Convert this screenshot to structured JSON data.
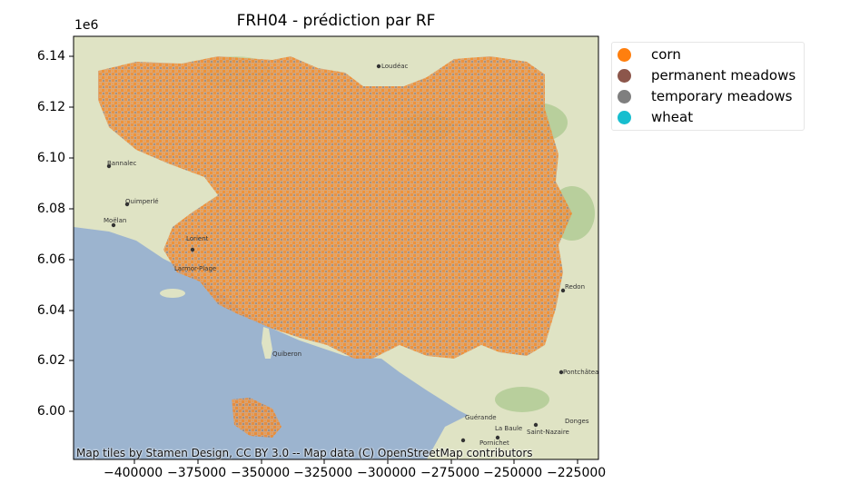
{
  "title": "FRH04 - prédiction par RF",
  "axis": {
    "offset_label": "1e6",
    "y_ticks": [
      "6.14",
      "6.12",
      "6.10",
      "6.08",
      "6.06",
      "6.04",
      "6.02",
      "6.00"
    ],
    "x_ticks": [
      "−400000",
      "−375000",
      "−350000",
      "−325000",
      "−300000",
      "−275000",
      "−250000",
      "−225000"
    ]
  },
  "legend": [
    {
      "label": "corn",
      "color": "#ff7f0e"
    },
    {
      "label": "permanent meadows",
      "color": "#8c564b"
    },
    {
      "label": "temporary meadows",
      "color": "#7f7f7f"
    },
    {
      "label": "wheat",
      "color": "#17becf"
    }
  ],
  "attribution": "Map tiles by Stamen Design, CC BY 3.0 -- Map data (C) OpenStreetMap contributors",
  "map_labels": [
    "Loudéac",
    "Bannalec",
    "Quimperlé",
    "Moëlan",
    "Lorient",
    "Larmor-Plage",
    "Quiberon",
    "Redon",
    "Pontchâteau",
    "Guérande",
    "La Baule",
    "Pornichet",
    "Saint-Nazaire",
    "Donges"
  ],
  "colors": {
    "sea": "#9cb4cf",
    "land": "#dfe3c4",
    "forest": "#b8cf9c"
  }
}
